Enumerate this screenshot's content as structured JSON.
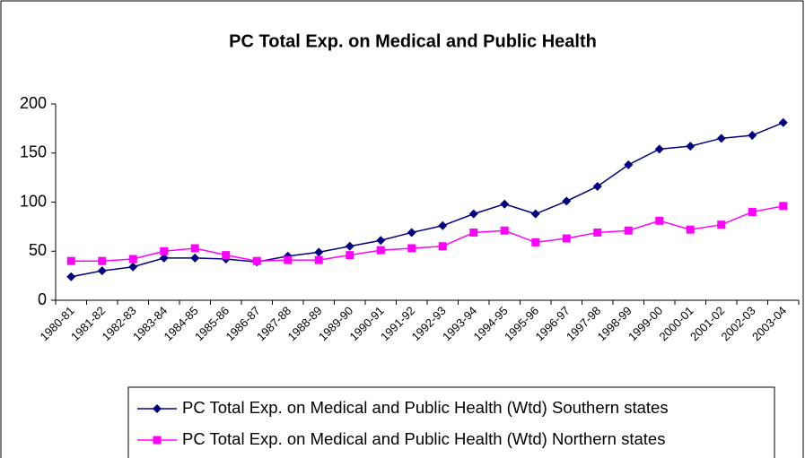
{
  "chart_data": {
    "type": "line",
    "title": "PC Total Exp. on Medical and Public Health",
    "categories": [
      "1980-81",
      "1981-82",
      "1982-83",
      "1983-84",
      "1984-85",
      "1985-86",
      "1986-87",
      "1987-88",
      "1988-89",
      "1989-90",
      "1990-91",
      "1991-92",
      "1992-93",
      "1993-94",
      "1994-95",
      "1995-96",
      "1996-97",
      "1997-98",
      "1998-99",
      "1999-00",
      "2000-01",
      "2001-02",
      "2002-03",
      "2003-04"
    ],
    "series": [
      {
        "name": "PC Total Exp. on Medical and Public Health (Wtd) Southern states",
        "color": "#000080",
        "marker": "diamond",
        "values": [
          24,
          30,
          34,
          43,
          43,
          42,
          39,
          45,
          49,
          55,
          61,
          69,
          76,
          88,
          98,
          88,
          101,
          116,
          138,
          154,
          157,
          165,
          168,
          181
        ]
      },
      {
        "name": "PC Total Exp. on Medical and Public Health (Wtd) Northern states",
        "color": "#ff00ff",
        "marker": "square",
        "values": [
          40,
          40,
          42,
          50,
          53,
          46,
          40,
          41,
          41,
          46,
          51,
          53,
          55,
          69,
          71,
          59,
          63,
          69,
          71,
          81,
          72,
          77,
          90,
          96
        ]
      }
    ],
    "ylim": [
      0,
      200
    ],
    "yticks": [
      0,
      50,
      100,
      150,
      200
    ],
    "grid": false,
    "legend": "bottom"
  }
}
